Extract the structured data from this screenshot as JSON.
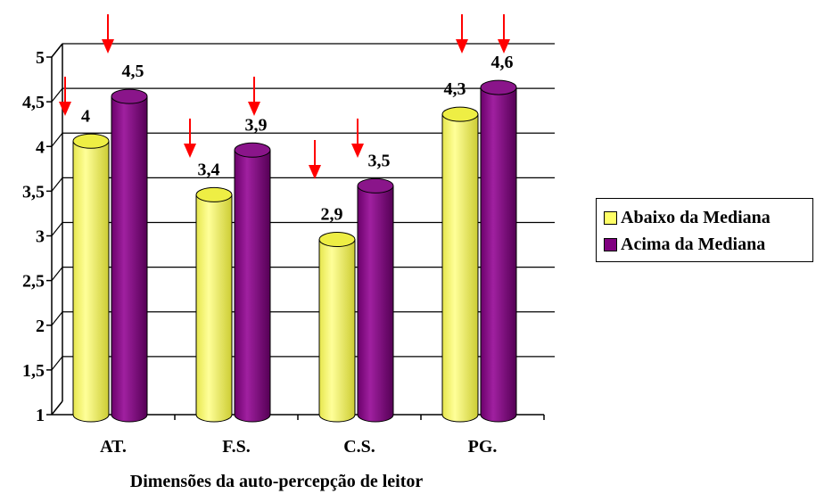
{
  "chart_data": {
    "type": "bar",
    "xlabel": "Dimensões da auto-percepção de leitor",
    "ylabel": "",
    "ylim": [
      1,
      5
    ],
    "yticks": [
      "1",
      "1,5",
      "2",
      "2,5",
      "3",
      "3,5",
      "4",
      "4,5",
      "5"
    ],
    "grid": true,
    "legend_position": "right",
    "categories": [
      "AT.",
      "F.S.",
      "C.S.",
      "PG."
    ],
    "series": [
      {
        "name": "Abaixo da Mediana",
        "values": [
          4,
          3.4,
          2.9,
          4.3
        ],
        "labels": [
          "4",
          "3,4",
          "2,9",
          "4,3"
        ],
        "color": "#ffff66"
      },
      {
        "name": "Acima da Mediana",
        "values": [
          4.5,
          3.9,
          3.5,
          4.6
        ],
        "labels": [
          "4,5",
          "3,9",
          "3,5",
          "4,6"
        ],
        "color": "#800080"
      }
    ],
    "annotations": {
      "arrow_color": "#ff0000",
      "arrow_count": 9
    }
  }
}
